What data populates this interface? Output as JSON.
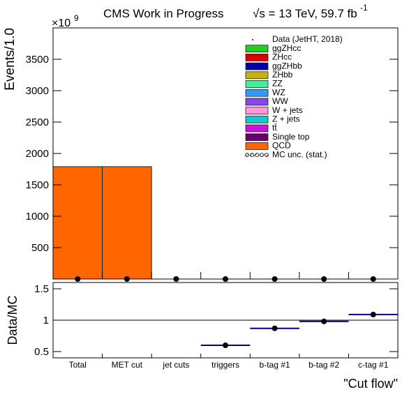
{
  "title": "CMS Work in Progress",
  "lumi": "√s = 13 TeV, 59.7 fb",
  "lumi_exponent": "-1",
  "chart_data": [
    {
      "type": "stacked_bar",
      "ylabel": "Events/1.0",
      "y_multiplier": "×10",
      "y_multiplier_exponent": "9",
      "categories": [
        "Total",
        "MET cut",
        "jet cuts",
        "triggers",
        "b-tag #1",
        "b-tag #2",
        "c-tag #1"
      ],
      "ylim": [
        0,
        4000
      ],
      "yticks": [
        500,
        1000,
        1500,
        2000,
        2500,
        3000,
        3500
      ],
      "data": {
        "name": "Data (JetHT, 2018)",
        "color": "#000000",
        "values": [
          0,
          0,
          0,
          0,
          0,
          0,
          0
        ]
      },
      "series": [
        {
          "name": "ggZHcc",
          "color": "#22cc22",
          "values": [
            0,
            0,
            0,
            0,
            0,
            0,
            0
          ]
        },
        {
          "name": "ZHcc",
          "color": "#dd0000",
          "values": [
            0,
            0,
            0,
            0,
            0,
            0,
            0
          ]
        },
        {
          "name": "ggZHbb",
          "color": "#0000aa",
          "values": [
            0,
            0,
            0,
            0,
            0,
            0,
            0
          ]
        },
        {
          "name": "ZHbb",
          "color": "#c8b400",
          "values": [
            0,
            0,
            0,
            0,
            0,
            0,
            0
          ]
        },
        {
          "name": "ZZ",
          "color": "#44ee99",
          "values": [
            0,
            0,
            0,
            0,
            0,
            0,
            0
          ]
        },
        {
          "name": "WZ",
          "color": "#3399ff",
          "values": [
            0,
            0,
            0,
            0,
            0,
            0,
            0
          ]
        },
        {
          "name": "WW",
          "color": "#8844ee",
          "values": [
            0,
            0,
            0,
            0,
            0,
            0,
            0
          ]
        },
        {
          "name": "W + jets",
          "color": "#ff99dd",
          "values": [
            0,
            0,
            0,
            0,
            0,
            0,
            0
          ]
        },
        {
          "name": "Z + jets",
          "color": "#11cccc",
          "values": [
            0,
            0,
            0,
            0,
            0,
            0,
            0
          ]
        },
        {
          "name": "tt̄",
          "color": "#cc11dd",
          "values": [
            0,
            0,
            0,
            0,
            0,
            0,
            0
          ]
        },
        {
          "name": "Single top",
          "color": "#660066",
          "values": [
            0,
            0,
            0,
            0,
            0,
            0,
            0
          ]
        },
        {
          "name": "QCD",
          "color": "#ff6600",
          "values": [
            1790,
            1790,
            0,
            0,
            0,
            0,
            0
          ]
        },
        {
          "name": "MC unc. (stat.)",
          "color": "#888888",
          "style": "hatch",
          "values": [
            0,
            0,
            0,
            0,
            0,
            0,
            0
          ]
        }
      ]
    },
    {
      "type": "ratio",
      "ylabel": "Data/MC",
      "xlabel": "\"Cut flow\"",
      "color": "#000080",
      "categories": [
        "Total",
        "MET cut",
        "jet cuts",
        "triggers",
        "b-tag #1",
        "b-tag #2",
        "c-tag #1"
      ],
      "values": [
        null,
        null,
        null,
        0.6,
        0.87,
        0.98,
        1.09
      ],
      "ylim": [
        0.4,
        1.6
      ],
      "yticks": [
        0.5,
        1,
        1.5
      ],
      "hline": 1
    }
  ]
}
